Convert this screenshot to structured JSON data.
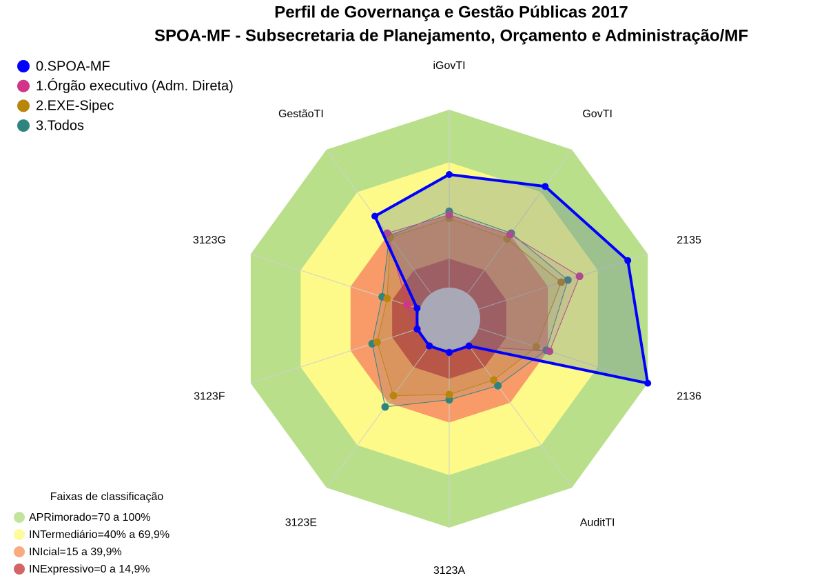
{
  "chart_data": {
    "type": "radar",
    "title": "Perfil de Governança e Gestão Públicas 2017",
    "subtitle": "SPOA-MF - Subsecretaria de Planejamento, Orçamento e Administração/MF",
    "categories": [
      "iGovTI",
      "GovTI",
      "2135",
      "2136",
      "AuditTI",
      "3123A",
      "3123E",
      "3123F",
      "3123G",
      "GestãoTI"
    ],
    "rlim": [
      0,
      100
    ],
    "series": [
      {
        "name": "0.SPOA-MF",
        "color": "#0000ff",
        "values": [
          63,
          74,
          88,
          100,
          0,
          0,
          0,
          0,
          0,
          53
        ]
      },
      {
        "name": "1.Órgão executivo (Adm. Direta)",
        "color": "#d0358a",
        "values": [
          40,
          40,
          59,
          41,
          0,
          0,
          0,
          0,
          6,
          41
        ]
      },
      {
        "name": "2.EXE-Sipec",
        "color": "#b8860b",
        "values": [
          38,
          37,
          48,
          33,
          24,
          24,
          35,
          24,
          18,
          38
        ]
      },
      {
        "name": "3.Todos",
        "color": "#2e8580",
        "values": [
          42,
          41,
          52,
          39,
          28,
          27,
          43,
          27,
          21,
          39
        ]
      }
    ],
    "bands_title": "Faixas de classificação",
    "bands": [
      {
        "label": "APRimorado=70 a 100%",
        "from": 70,
        "to": 100,
        "color": "#b9df8b"
      },
      {
        "label": "INTermediário=40% a 69,9%",
        "from": 40,
        "to": 70,
        "color": "#fdfa8a"
      },
      {
        "label": "INIcial=15 a 39,9%",
        "from": 15,
        "to": 40,
        "color": "#f99b68"
      },
      {
        "label": "INExpressivo=0 a 14,9%",
        "from": 0,
        "to": 15,
        "color": "#cc4a4a"
      }
    ]
  }
}
